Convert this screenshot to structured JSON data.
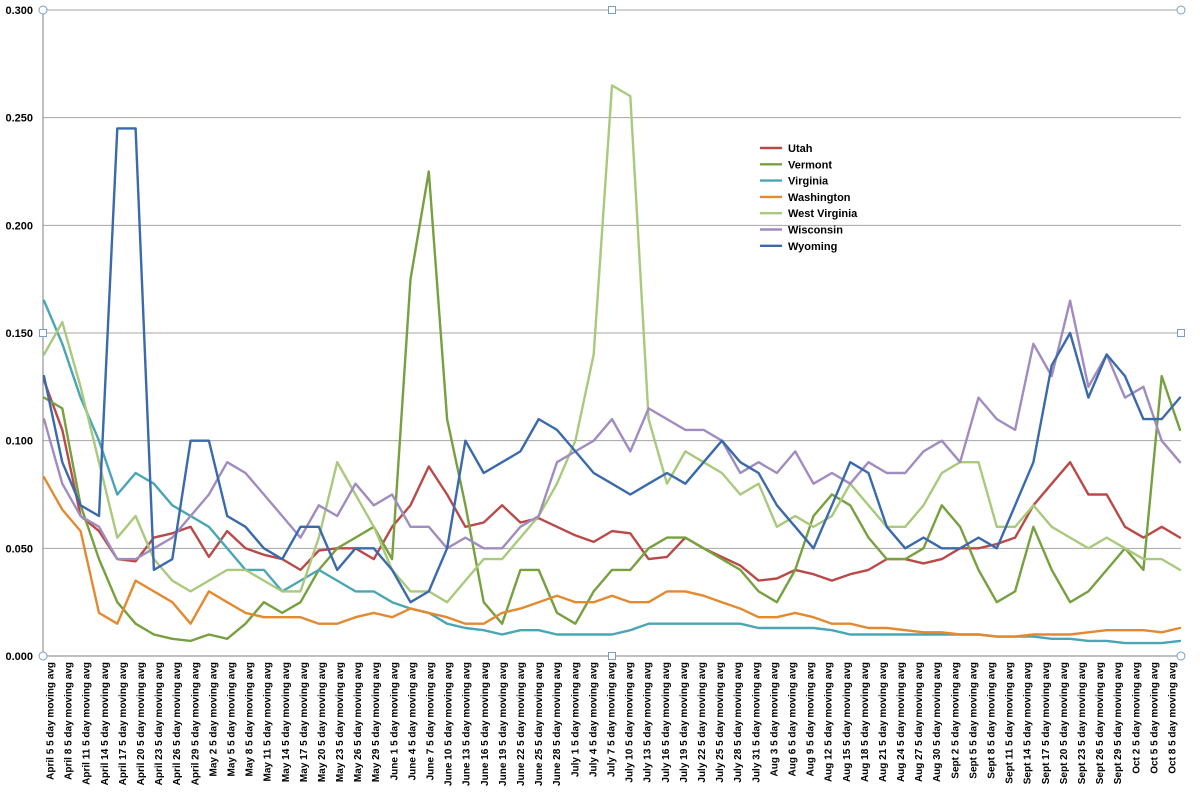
{
  "chart_data": {
    "type": "line",
    "title": "",
    "xlabel": "",
    "ylabel": "",
    "ylim": [
      0,
      0.3
    ],
    "yticks": [
      "0.000",
      "0.050",
      "0.100",
      "0.150",
      "0.200",
      "0.250",
      "0.300"
    ],
    "ytick_values": [
      0,
      0.05,
      0.1,
      0.15,
      0.2,
      0.25,
      0.3
    ],
    "grid": "horizontal",
    "legend_position": "upper-center",
    "x_tick_labels": [
      "April 5 5 day moving avg",
      "April 8 5 day moving avg",
      "April 11 5 day moving avg",
      "April 14 5 day moving avg",
      "April 17 5 day moving avg",
      "April 20 5 day moving avg",
      "April 23 5 day moving avg",
      "April 26 5 day moving avg",
      "April 29 5 day moving avg",
      "May 2 5 day moving avg",
      "May 5 5 day moving avg",
      "May 8 5 day moving avg",
      "May 11 5 day moving avg",
      "May 14 5 day moving avg",
      "May 17 5 day moving avg",
      "May 20 5 day moving avg",
      "May 23 5 day moving avg",
      "May 26 5 day moving avg",
      "May 29 5 day moving avg",
      "June 1 5 day moving avg",
      "June 4 5 day moving avg",
      "June 7 5 day moving avg",
      "June 10 5 day moving avg",
      "June 13 5 day moving avg",
      "June 16 5 day moving avg",
      "June 19 5 day moving avg",
      "June 22 5 day moving avg",
      "June 25 5 day moving avg",
      "June 28 5 day moving avg",
      "July 1 5 day moving avg",
      "July 4 5 day moving avg",
      "July 7 5 day moving avg",
      "July 10 5 day moving avg",
      "July 13 5 day moving avg",
      "July 16 5 day moving avg",
      "July 19 5 day moving avg",
      "July 22 5 day moving avg",
      "July 25 5 day moving avg",
      "July 28 5 day moving avg",
      "July 31 5 day moving avg",
      "Aug 3 5 day moving avg",
      "Aug 6 5 day moving avg",
      "Aug 9 5 day moving avg",
      "Aug 12 5 day moving avg",
      "Aug 15 5 day moving avg",
      "Aug 18 5 day moving avg",
      "Aug 21 5 day moving avg",
      "Aug 24 5 day moving avg",
      "Aug 27 5 day moving avg",
      "Aug 30 5 day moving avg",
      "Sept 2 5 day moving avg",
      "Sept 5 5 day moving avg",
      "Sept 8 5 day moving avg",
      "Sept 11 5 day moving avg",
      "Sept 14 5 day moving avg",
      "Sept 17 5 day moving avg",
      "Sept 20 5 day moving avg",
      "Sept 23 5 day moving avg",
      "Sept 26 5 day moving avg",
      "Sept 29 5 day moving avg",
      "Oct 2 5 day moving avg",
      "Oct 5 5 day moving avg",
      "Oct 8 5 day moving avg"
    ],
    "series": [
      {
        "name": "Utah",
        "color": "#b94a48",
        "values": [
          0.128,
          0.105,
          0.065,
          0.058,
          0.045,
          0.044,
          0.055,
          0.057,
          0.06,
          0.046,
          0.058,
          0.05,
          0.047,
          0.045,
          0.04,
          0.049,
          0.05,
          0.05,
          0.045,
          0.06,
          0.07,
          0.088,
          0.075,
          0.06,
          0.062,
          0.07,
          0.062,
          0.064,
          0.06,
          0.056,
          0.053,
          0.058,
          0.057,
          0.045,
          0.046,
          0.055,
          0.05,
          0.046,
          0.042,
          0.035,
          0.036,
          0.04,
          0.038,
          0.035,
          0.038,
          0.04,
          0.045,
          0.045,
          0.043,
          0.045,
          0.05,
          0.05,
          0.052,
          0.055,
          0.07,
          0.08,
          0.09,
          0.075,
          0.075,
          0.06,
          0.055,
          0.06,
          0.055
        ]
      },
      {
        "name": "Vermont",
        "color": "#77a03f",
        "values": [
          0.12,
          0.115,
          0.07,
          0.045,
          0.025,
          0.015,
          0.01,
          0.008,
          0.007,
          0.01,
          0.008,
          0.015,
          0.025,
          0.02,
          0.025,
          0.04,
          0.05,
          0.055,
          0.06,
          0.045,
          0.175,
          0.225,
          0.11,
          0.07,
          0.025,
          0.015,
          0.04,
          0.04,
          0.02,
          0.015,
          0.03,
          0.04,
          0.04,
          0.05,
          0.055,
          0.055,
          0.05,
          0.045,
          0.04,
          0.03,
          0.025,
          0.04,
          0.065,
          0.075,
          0.07,
          0.055,
          0.045,
          0.045,
          0.05,
          0.07,
          0.06,
          0.04,
          0.025,
          0.03,
          0.06,
          0.04,
          0.025,
          0.03,
          0.04,
          0.05,
          0.04,
          0.13,
          0.105
        ]
      },
      {
        "name": "Virginia",
        "color": "#4aa5b5",
        "values": [
          0.165,
          0.145,
          0.12,
          0.1,
          0.075,
          0.085,
          0.08,
          0.07,
          0.065,
          0.06,
          0.05,
          0.04,
          0.04,
          0.03,
          0.035,
          0.04,
          0.035,
          0.03,
          0.03,
          0.025,
          0.022,
          0.02,
          0.015,
          0.013,
          0.012,
          0.01,
          0.012,
          0.012,
          0.01,
          0.01,
          0.01,
          0.01,
          0.012,
          0.015,
          0.015,
          0.015,
          0.015,
          0.015,
          0.015,
          0.013,
          0.013,
          0.013,
          0.013,
          0.012,
          0.01,
          0.01,
          0.01,
          0.01,
          0.01,
          0.01,
          0.01,
          0.01,
          0.009,
          0.009,
          0.009,
          0.008,
          0.008,
          0.007,
          0.007,
          0.006,
          0.006,
          0.006,
          0.007
        ]
      },
      {
        "name": "Washington",
        "color": "#e38a31",
        "values": [
          0.083,
          0.068,
          0.058,
          0.02,
          0.015,
          0.035,
          0.03,
          0.025,
          0.015,
          0.03,
          0.025,
          0.02,
          0.018,
          0.018,
          0.018,
          0.015,
          0.015,
          0.018,
          0.02,
          0.018,
          0.022,
          0.02,
          0.018,
          0.015,
          0.015,
          0.02,
          0.022,
          0.025,
          0.028,
          0.025,
          0.025,
          0.028,
          0.025,
          0.025,
          0.03,
          0.03,
          0.028,
          0.025,
          0.022,
          0.018,
          0.018,
          0.02,
          0.018,
          0.015,
          0.015,
          0.013,
          0.013,
          0.012,
          0.011,
          0.011,
          0.01,
          0.01,
          0.009,
          0.009,
          0.01,
          0.01,
          0.01,
          0.011,
          0.012,
          0.012,
          0.012,
          0.011,
          0.013
        ]
      },
      {
        "name": "West Virginia",
        "color": "#a9c97c",
        "values": [
          0.14,
          0.155,
          0.125,
          0.09,
          0.055,
          0.065,
          0.045,
          0.035,
          0.03,
          0.035,
          0.04,
          0.04,
          0.035,
          0.03,
          0.03,
          0.055,
          0.09,
          0.075,
          0.06,
          0.04,
          0.03,
          0.03,
          0.025,
          0.035,
          0.045,
          0.045,
          0.055,
          0.065,
          0.08,
          0.1,
          0.14,
          0.265,
          0.26,
          0.11,
          0.08,
          0.095,
          0.09,
          0.085,
          0.075,
          0.08,
          0.06,
          0.065,
          0.06,
          0.065,
          0.08,
          0.07,
          0.06,
          0.06,
          0.07,
          0.085,
          0.09,
          0.09,
          0.06,
          0.06,
          0.07,
          0.06,
          0.055,
          0.05,
          0.055,
          0.05,
          0.045,
          0.045,
          0.04
        ]
      },
      {
        "name": "Wisconsin",
        "color": "#a08cc0",
        "values": [
          0.11,
          0.08,
          0.065,
          0.06,
          0.045,
          0.045,
          0.05,
          0.055,
          0.065,
          0.075,
          0.09,
          0.085,
          0.075,
          0.065,
          0.055,
          0.07,
          0.065,
          0.08,
          0.07,
          0.075,
          0.06,
          0.06,
          0.05,
          0.055,
          0.05,
          0.05,
          0.06,
          0.065,
          0.09,
          0.095,
          0.1,
          0.11,
          0.095,
          0.115,
          0.11,
          0.105,
          0.105,
          0.1,
          0.085,
          0.09,
          0.085,
          0.095,
          0.08,
          0.085,
          0.08,
          0.09,
          0.085,
          0.085,
          0.095,
          0.1,
          0.09,
          0.12,
          0.11,
          0.105,
          0.145,
          0.13,
          0.165,
          0.125,
          0.14,
          0.12,
          0.125,
          0.1,
          0.09
        ]
      },
      {
        "name": "Wyoming",
        "color": "#3a6aab",
        "values": [
          0.13,
          0.09,
          0.07,
          0.065,
          0.245,
          0.245,
          0.04,
          0.045,
          0.1,
          0.1,
          0.065,
          0.06,
          0.05,
          0.045,
          0.06,
          0.06,
          0.04,
          0.05,
          0.05,
          0.04,
          0.025,
          0.03,
          0.05,
          0.1,
          0.085,
          0.09,
          0.095,
          0.11,
          0.105,
          0.095,
          0.085,
          0.08,
          0.075,
          0.08,
          0.085,
          0.08,
          0.09,
          0.1,
          0.09,
          0.085,
          0.07,
          0.06,
          0.05,
          0.07,
          0.09,
          0.085,
          0.06,
          0.05,
          0.055,
          0.05,
          0.05,
          0.055,
          0.05,
          0.07,
          0.09,
          0.135,
          0.15,
          0.12,
          0.14,
          0.13,
          0.11,
          0.11,
          0.12
        ]
      }
    ]
  }
}
